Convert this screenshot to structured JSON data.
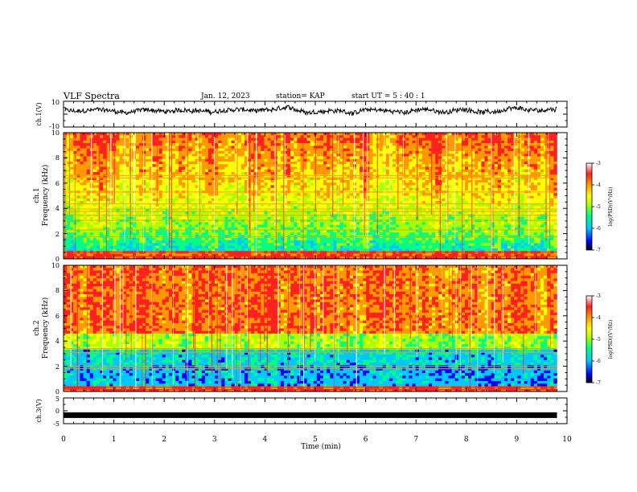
{
  "header": {
    "title": "VLF Spectra",
    "date": "Jan. 12, 2023",
    "station": "station= KAP",
    "start": "start UT = 5 : 40 : 1"
  },
  "chart_data": [
    {
      "type": "line",
      "title": "",
      "ylabel": "ch.1(V)",
      "ylim": [
        -10,
        10
      ],
      "yticks": [
        "10",
        "-10"
      ],
      "series": [
        {
          "name": "",
          "baseline": 2.6,
          "amplitude": 2.2
        }
      ]
    },
    {
      "type": "heatmap",
      "panel": "ch.1",
      "ylabel": "ch.1\nFrequency (kHz)",
      "ylim": [
        0,
        10
      ],
      "yticks": [
        "0",
        "2",
        "4",
        "6",
        "8",
        "10"
      ],
      "colorbar": {
        "label": "log(PSD)(V²/Hz)",
        "range": [
          -7,
          -3
        ],
        "ticks": [
          "-3",
          "-4",
          "-5",
          "-6",
          "-7"
        ]
      },
      "bands_khz": [
        0.2,
        0.55,
        1.75,
        2.3,
        3.05,
        3.45,
        3.75,
        3.95,
        4.35,
        5.3,
        6.4,
        6.6
      ]
    },
    {
      "type": "heatmap",
      "panel": "ch.2",
      "ylabel": "ch.2\nFrequency (kHz)",
      "ylim": [
        0,
        10
      ],
      "yticks": [
        "0",
        "2",
        "4",
        "6",
        "8",
        "10"
      ],
      "colorbar": {
        "label": "log(PSD)(V²/Hz)",
        "range": [
          -7,
          -3
        ],
        "ticks": [
          "-3",
          "-4",
          "-5",
          "-6",
          "-7"
        ]
      },
      "bands_khz": [
        0.15,
        0.35,
        1.8,
        2.0,
        3.1,
        3.4
      ]
    },
    {
      "type": "line",
      "ylabel": "ch.3(V)",
      "ylim": [
        -5,
        5
      ],
      "yticks": [
        "5",
        "0",
        "-5"
      ],
      "series": [
        {
          "name": "",
          "baseline": -1.7
        }
      ]
    }
  ],
  "xaxis": {
    "label": "Time (min)",
    "xlim": [
      0,
      10
    ],
    "data_end_min": 9.8,
    "ticks": [
      "0",
      "1",
      "2",
      "3",
      "4",
      "5",
      "6",
      "7",
      "8",
      "9",
      "10"
    ]
  },
  "colors": {
    "psd_scale": [
      "#000000",
      "#0000ff",
      "#00c8ff",
      "#00ff80",
      "#aaff00",
      "#ffff00",
      "#ff9900",
      "#ff2020",
      "#ffffff"
    ]
  }
}
